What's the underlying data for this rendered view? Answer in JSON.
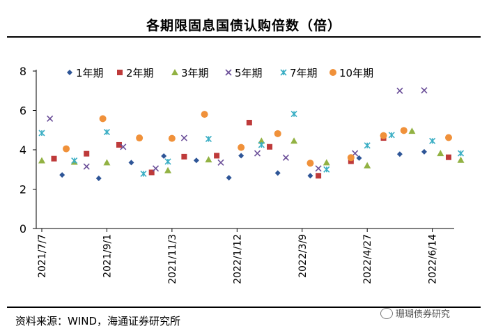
{
  "title": "各期限固息国债认购倍数（倍）",
  "source": "资料来源：WIND，海通证券研究所",
  "watermark": "珊瑚债券研究",
  "chart_data": {
    "type": "scatter",
    "title": "各期限固息国债认购倍数（倍）",
    "ylim": [
      0,
      8
    ],
    "yticks": [
      0,
      2,
      4,
      6,
      8
    ],
    "x_range": [
      0,
      50
    ],
    "x_tick_labels": [
      {
        "label": "2021/7/7",
        "x": 0
      },
      {
        "label": "2021/9/1",
        "x": 8
      },
      {
        "label": "2021/11/3",
        "x": 16
      },
      {
        "label": "2022/1/12",
        "x": 24
      },
      {
        "label": "2022/3/9",
        "x": 32
      },
      {
        "label": "2022/4/27",
        "x": 40
      },
      {
        "label": "2022/6/14",
        "x": 48
      }
    ],
    "legend_position": "top",
    "series": [
      {
        "name": "1年期",
        "color": "#2e5597",
        "marker": "diamond",
        "points": [
          [
            2.5,
            2.72
          ],
          [
            7,
            2.55
          ],
          [
            11,
            3.35
          ],
          [
            15,
            3.68
          ],
          [
            19,
            3.46
          ],
          [
            23,
            2.58
          ],
          [
            24.5,
            3.7
          ],
          [
            29,
            2.82
          ],
          [
            33,
            2.68
          ],
          [
            39,
            3.58
          ],
          [
            44,
            3.78
          ],
          [
            47,
            3.9
          ]
        ]
      },
      {
        "name": "2年期",
        "color": "#be3a3a",
        "marker": "square",
        "points": [
          [
            1.5,
            3.55
          ],
          [
            5.5,
            3.8
          ],
          [
            9.5,
            4.25
          ],
          [
            13.5,
            2.85
          ],
          [
            17.5,
            3.65
          ],
          [
            21.5,
            3.7
          ],
          [
            25.5,
            5.38
          ],
          [
            28,
            4.15
          ],
          [
            34,
            2.68
          ],
          [
            38,
            3.42
          ],
          [
            42,
            4.6
          ],
          [
            50,
            3.62
          ]
        ]
      },
      {
        "name": "3年期",
        "color": "#92b243",
        "marker": "triangle",
        "points": [
          [
            0,
            3.45
          ],
          [
            4,
            3.38
          ],
          [
            8,
            3.35
          ],
          [
            15.5,
            2.95
          ],
          [
            20.5,
            3.5
          ],
          [
            27,
            4.45
          ],
          [
            31,
            4.45
          ],
          [
            35,
            3.35
          ],
          [
            40,
            3.2
          ],
          [
            45.5,
            4.95
          ],
          [
            49,
            3.82
          ],
          [
            51.5,
            3.48
          ]
        ]
      },
      {
        "name": "5年期",
        "color": "#6a4e98",
        "marker": "x",
        "points": [
          [
            1,
            5.58
          ],
          [
            5.5,
            3.15
          ],
          [
            10,
            4.15
          ],
          [
            14,
            3.05
          ],
          [
            17.5,
            4.6
          ],
          [
            22,
            3.35
          ],
          [
            26.5,
            3.82
          ],
          [
            30,
            3.6
          ],
          [
            34,
            3.05
          ],
          [
            38.5,
            3.82
          ],
          [
            44,
            7.0
          ],
          [
            47,
            7.02
          ]
        ]
      },
      {
        "name": "7年期",
        "color": "#3aaec4",
        "marker": "asterisk",
        "points": [
          [
            0,
            4.85
          ],
          [
            4,
            3.45
          ],
          [
            8,
            4.9
          ],
          [
            12.5,
            2.78
          ],
          [
            15.5,
            3.4
          ],
          [
            20.5,
            4.55
          ],
          [
            27,
            4.25
          ],
          [
            31,
            5.82
          ],
          [
            35,
            3.0
          ],
          [
            40,
            4.22
          ],
          [
            43,
            4.75
          ],
          [
            48,
            4.45
          ],
          [
            51.5,
            3.82
          ]
        ]
      },
      {
        "name": "10年期",
        "color": "#f0913a",
        "marker": "circle",
        "points": [
          [
            3,
            4.05
          ],
          [
            7.5,
            5.58
          ],
          [
            12,
            4.6
          ],
          [
            16,
            4.58
          ],
          [
            20,
            5.8
          ],
          [
            24.5,
            4.12
          ],
          [
            29,
            4.82
          ],
          [
            33,
            3.32
          ],
          [
            38,
            3.6
          ],
          [
            42,
            4.72
          ],
          [
            44.5,
            4.98
          ],
          [
            50,
            4.62
          ]
        ]
      }
    ]
  }
}
